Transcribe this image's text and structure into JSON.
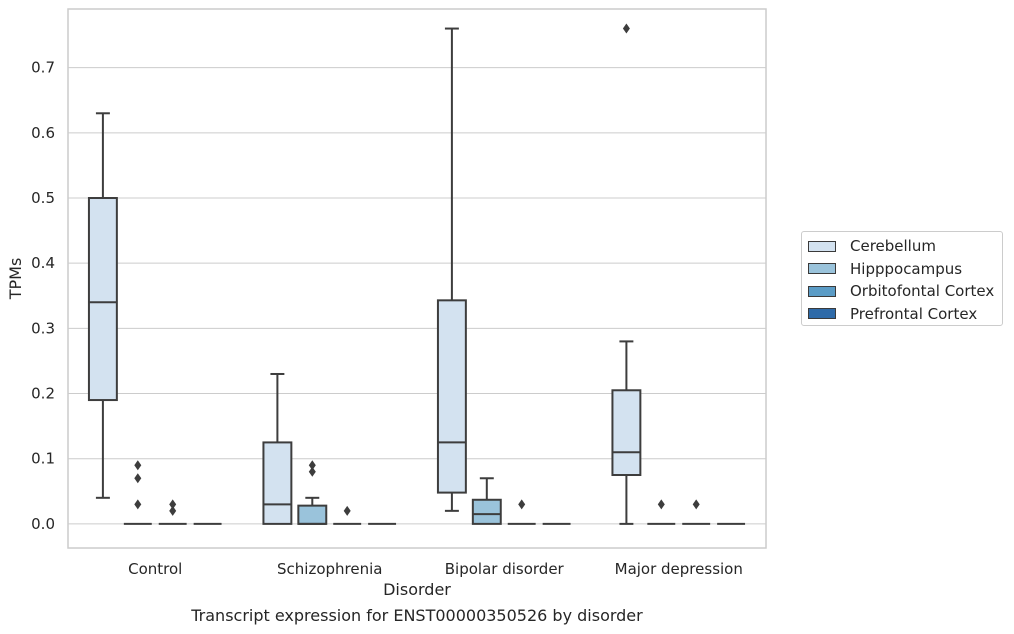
{
  "chart_data": {
    "type": "box",
    "caption": "Transcript expression for ENST00000350526 by disorder",
    "xlabel": "Disorder",
    "ylabel": "TPMs",
    "ylim": [
      -0.037,
      0.79
    ],
    "yticks": [
      0.0,
      0.1,
      0.2,
      0.3,
      0.4,
      0.5,
      0.6,
      0.7
    ],
    "ytick_labels": [
      "0.0",
      "0.1",
      "0.2",
      "0.3",
      "0.4",
      "0.5",
      "0.6",
      "0.7"
    ],
    "grid": "horizontal",
    "legend_position": "outside-right",
    "categories": [
      "Control",
      "Schizophrenia",
      "Bipolar disorder",
      "Major depression"
    ],
    "series": [
      {
        "name": "Cerebellum",
        "color": "#d3e2f0",
        "boxes": [
          {
            "whisker_low": 0.04,
            "q1": 0.19,
            "median": 0.34,
            "q3": 0.5,
            "whisker_high": 0.63,
            "outliers": []
          },
          {
            "whisker_low": 0.0,
            "q1": 0.0,
            "median": 0.03,
            "q3": 0.125,
            "whisker_high": 0.23,
            "outliers": []
          },
          {
            "whisker_low": 0.02,
            "q1": 0.048,
            "median": 0.125,
            "q3": 0.343,
            "whisker_high": 0.76,
            "outliers": []
          },
          {
            "whisker_low": 0.0,
            "q1": 0.075,
            "median": 0.11,
            "q3": 0.205,
            "whisker_high": 0.28,
            "outliers": [
              0.76
            ]
          }
        ]
      },
      {
        "name": "Hipppocampus",
        "color": "#9ac3db",
        "boxes": [
          {
            "whisker_low": 0.0,
            "q1": 0.0,
            "median": 0.0,
            "q3": 0.0,
            "whisker_high": 0.0,
            "outliers": [
              0.03,
              0.07,
              0.09
            ]
          },
          {
            "whisker_low": 0.0,
            "q1": 0.0,
            "median": 0.0,
            "q3": 0.028,
            "whisker_high": 0.04,
            "outliers": [
              0.08,
              0.09
            ]
          },
          {
            "whisker_low": 0.0,
            "q1": 0.0,
            "median": 0.015,
            "q3": 0.037,
            "whisker_high": 0.07,
            "outliers": []
          },
          {
            "whisker_low": 0.0,
            "q1": 0.0,
            "median": 0.0,
            "q3": 0.0,
            "whisker_high": 0.0,
            "outliers": [
              0.03
            ]
          }
        ]
      },
      {
        "name": "Orbitofontal Cortex",
        "color": "#5b9cc6",
        "boxes": [
          {
            "whisker_low": 0.0,
            "q1": 0.0,
            "median": 0.0,
            "q3": 0.0,
            "whisker_high": 0.0,
            "outliers": [
              0.02,
              0.03
            ]
          },
          {
            "whisker_low": 0.0,
            "q1": 0.0,
            "median": 0.0,
            "q3": 0.0,
            "whisker_high": 0.0,
            "outliers": [
              0.02
            ]
          },
          {
            "whisker_low": 0.0,
            "q1": 0.0,
            "median": 0.0,
            "q3": 0.0,
            "whisker_high": 0.0,
            "outliers": [
              0.03
            ]
          },
          {
            "whisker_low": 0.0,
            "q1": 0.0,
            "median": 0.0,
            "q3": 0.0,
            "whisker_high": 0.0,
            "outliers": [
              0.03
            ]
          }
        ]
      },
      {
        "name": "Prefrontal Cortex",
        "color": "#2e6aa8",
        "boxes": [
          {
            "whisker_low": 0.0,
            "q1": 0.0,
            "median": 0.0,
            "q3": 0.0,
            "whisker_high": 0.0,
            "outliers": []
          },
          {
            "whisker_low": 0.0,
            "q1": 0.0,
            "median": 0.0,
            "q3": 0.0,
            "whisker_high": 0.0,
            "outliers": []
          },
          {
            "whisker_low": 0.0,
            "q1": 0.0,
            "median": 0.0,
            "q3": 0.0,
            "whisker_high": 0.0,
            "outliers": []
          },
          {
            "whisker_low": 0.0,
            "q1": 0.0,
            "median": 0.0,
            "q3": 0.0,
            "whisker_high": 0.0,
            "outliers": []
          }
        ]
      }
    ],
    "box_edge_color": "#3d3d3d",
    "grid_color": "#cccccc",
    "frame_color": "#cccccc"
  }
}
